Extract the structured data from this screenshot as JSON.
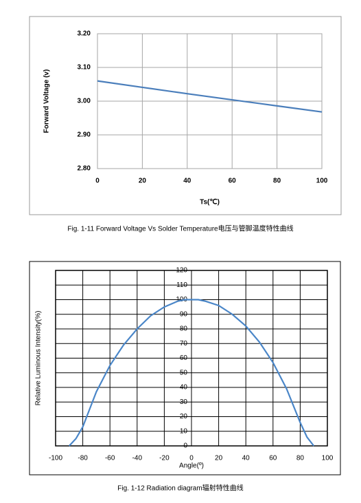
{
  "chart_data": [
    {
      "type": "line",
      "x_label": "Ts(℃)",
      "y_label": "Forward Voltage (v)",
      "caption": "Fig. 1-11 Forward Voltage Vs Solder Temperature电压与管脚温度特性曲线",
      "x": [
        0,
        20,
        40,
        60,
        80,
        100
      ],
      "series": [
        {
          "color": "#4a7ebb",
          "values": [
            3.06,
            3.041,
            3.022,
            3.004,
            2.986,
            2.968
          ]
        }
      ],
      "xlim": [
        0,
        100
      ],
      "xticks": [
        0,
        20,
        40,
        60,
        80,
        100
      ],
      "ylim": [
        2.8,
        3.2
      ],
      "yticks": [
        {
          "value": 2.8,
          "label": "2.80"
        },
        {
          "value": 2.9,
          "label": "2.90"
        },
        {
          "value": 3.0,
          "label": "3.00"
        },
        {
          "value": 3.1,
          "label": "3.10"
        },
        {
          "value": 3.2,
          "label": "3.20"
        }
      ],
      "grid": true
    },
    {
      "type": "line",
      "x_label": "Angle(º)",
      "y_label": "Relative Luminous Intensity(%)",
      "caption": "Fig. 1-12 Radiation diagram辐射特性曲线",
      "x": [
        -90,
        -85,
        -80,
        -70,
        -60,
        -50,
        -40,
        -30,
        -20,
        -10,
        -5,
        0,
        5,
        10,
        20,
        30,
        40,
        50,
        60,
        70,
        80,
        85,
        90
      ],
      "series": [
        {
          "color": "#4a86c8",
          "values": [
            0,
            5,
            13,
            37,
            55,
            69,
            80,
            89,
            95,
            99,
            100,
            100,
            100,
            99,
            96,
            90,
            82,
            71,
            57,
            39,
            16,
            6,
            0
          ]
        }
      ],
      "xlim": [
        -100,
        100
      ],
      "xticks": [
        -100,
        -80,
        -60,
        -40,
        -20,
        0,
        20,
        40,
        60,
        80,
        100
      ],
      "ylim": [
        0,
        120
      ],
      "yticks": [
        0,
        10,
        20,
        30,
        40,
        50,
        60,
        70,
        80,
        90,
        100,
        110,
        120
      ],
      "grid": true
    }
  ]
}
